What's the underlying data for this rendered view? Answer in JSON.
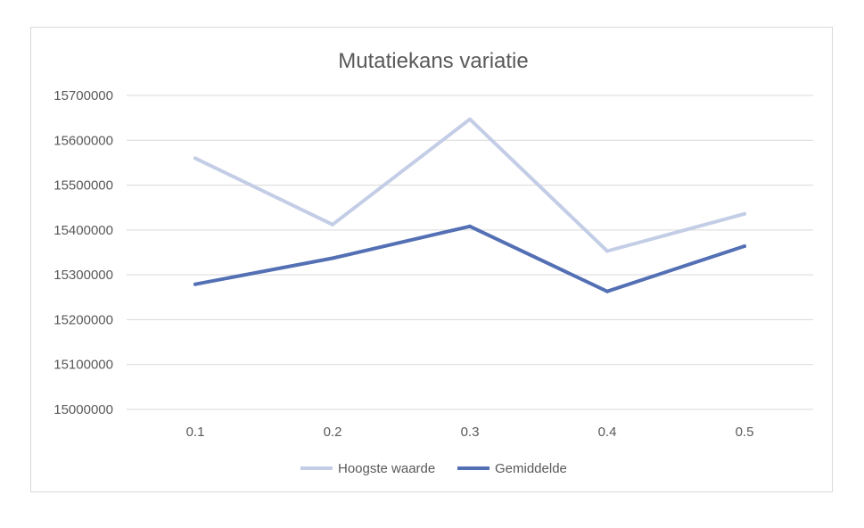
{
  "chart_data": {
    "type": "line",
    "title": "Mutatiekans variatie",
    "xlabel": "",
    "ylabel": "",
    "categories": [
      "0.1",
      "0.2",
      "0.3",
      "0.4",
      "0.5"
    ],
    "ylim": [
      15000000,
      15700000
    ],
    "yticks": [
      15000000,
      15100000,
      15200000,
      15300000,
      15400000,
      15500000,
      15600000,
      15700000
    ],
    "ytick_labels": [
      "15000000",
      "15100000",
      "15200000",
      "15300000",
      "15400000",
      "15500000",
      "15600000",
      "15700000"
    ],
    "grid": true,
    "legend_position": "bottom",
    "series": [
      {
        "name": "Hoogste waarde",
        "color": "#c3cde6",
        "values": [
          15560000,
          15412000,
          15647000,
          15353000,
          15436000
        ]
      },
      {
        "name": "Gemiddelde",
        "color": "#5470b4",
        "values": [
          15279000,
          15337000,
          15408000,
          15263000,
          15364000
        ]
      }
    ]
  }
}
